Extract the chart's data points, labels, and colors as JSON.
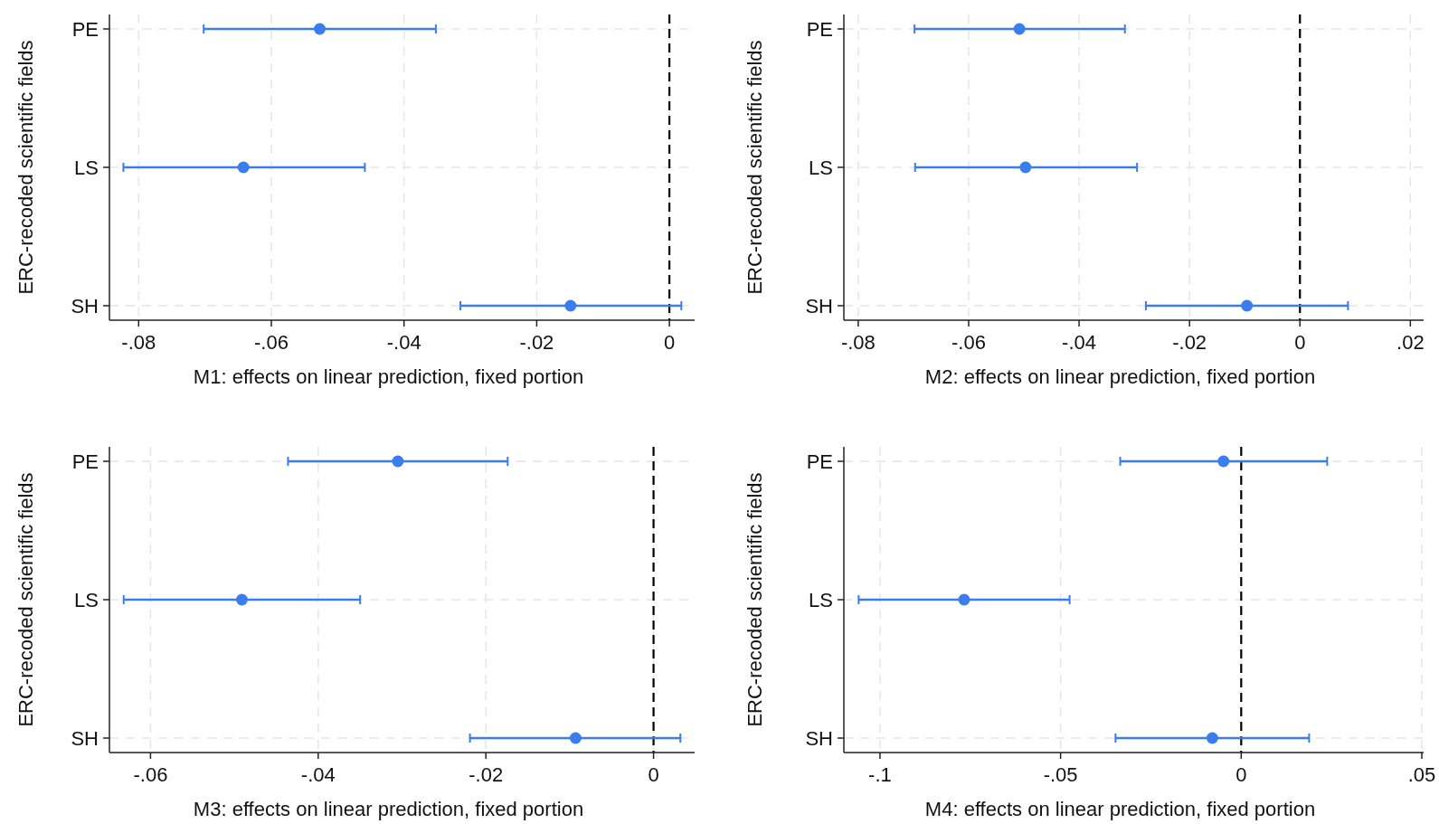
{
  "chart_data": [
    {
      "type": "scatter",
      "orientation": "horizontal",
      "categories": [
        "PE",
        "LS",
        "SH"
      ],
      "values": [
        -0.0527,
        -0.0642,
        -0.0149
      ],
      "errors": [
        [
          -0.0702,
          -0.0352
        ],
        [
          -0.0823,
          -0.0459
        ],
        [
          -0.0315,
          0.0018
        ]
      ],
      "color": "#3b7ded",
      "marker": "circle",
      "xlabel": "M1: effects on linear prediction, fixed portion",
      "ylabel": "ERC-recoded scientific fields",
      "xlim": [
        -0.0844,
        0.0038
      ],
      "xticks": [
        {
          "value": -0.08,
          "label": "-.08"
        },
        {
          "value": -0.06,
          "label": "-.06"
        },
        {
          "value": -0.04,
          "label": "-.04"
        },
        {
          "value": -0.02,
          "label": "-.02"
        },
        {
          "value": 0,
          "label": "0"
        }
      ],
      "grid": true,
      "ref_lines": [
        {
          "axis": "x",
          "value": 0,
          "color": "#000000",
          "line_style": "dashed"
        }
      ]
    },
    {
      "type": "scatter",
      "orientation": "horizontal",
      "categories": [
        "PE",
        "LS",
        "SH"
      ],
      "values": [
        -0.0508,
        -0.0497,
        -0.0096
      ],
      "errors": [
        [
          -0.0698,
          -0.0317
        ],
        [
          -0.0697,
          -0.0295
        ],
        [
          -0.0279,
          0.0087
        ]
      ],
      "color": "#3b7ded",
      "marker": "circle",
      "xlabel": "M2: effects on linear prediction, fixed portion",
      "ylabel": "ERC-recoded scientific fields",
      "xlim": [
        -0.0826,
        0.0224
      ],
      "xticks": [
        {
          "value": -0.08,
          "label": "-.08"
        },
        {
          "value": -0.06,
          "label": "-.06"
        },
        {
          "value": -0.04,
          "label": "-.04"
        },
        {
          "value": -0.02,
          "label": "-.02"
        },
        {
          "value": 0,
          "label": "0"
        },
        {
          "value": 0.02,
          "label": ".02"
        }
      ],
      "grid": true,
      "ref_lines": [
        {
          "axis": "x",
          "value": 0,
          "color": "#000000",
          "line_style": "dashed"
        }
      ]
    },
    {
      "type": "scatter",
      "orientation": "horizontal",
      "categories": [
        "PE",
        "LS",
        "SH"
      ],
      "values": [
        -0.0305,
        -0.0491,
        -0.0093
      ],
      "errors": [
        [
          -0.0436,
          -0.0174
        ],
        [
          -0.0632,
          -0.035
        ],
        [
          -0.0219,
          0.0032
        ]
      ],
      "color": "#3b7ded",
      "marker": "circle",
      "xlabel": "M3: effects on linear prediction, fixed portion",
      "ylabel": "ERC-recoded scientific fields",
      "xlim": [
        -0.0649,
        0.0049
      ],
      "xticks": [
        {
          "value": -0.06,
          "label": "-.06"
        },
        {
          "value": -0.04,
          "label": "-.04"
        },
        {
          "value": -0.02,
          "label": "-.02"
        },
        {
          "value": 0,
          "label": "0"
        }
      ],
      "grid": true,
      "ref_lines": [
        {
          "axis": "x",
          "value": 0,
          "color": "#000000",
          "line_style": "dashed"
        }
      ]
    },
    {
      "type": "scatter",
      "orientation": "horizontal",
      "categories": [
        "PE",
        "LS",
        "SH"
      ],
      "values": [
        -0.0049,
        -0.0767,
        -0.008
      ],
      "errors": [
        [
          -0.0335,
          0.0238
        ],
        [
          -0.1059,
          -0.0475
        ],
        [
          -0.0348,
          0.0188
        ]
      ],
      "color": "#3b7ded",
      "marker": "circle",
      "xlabel": "M4: effects on linear prediction, fixed portion",
      "ylabel": "ERC-recoded scientific fields",
      "xlim": [
        -0.11,
        0.0505
      ],
      "xticks": [
        {
          "value": -0.1,
          "label": "-.1"
        },
        {
          "value": -0.05,
          "label": "-.05"
        },
        {
          "value": 0,
          "label": "0"
        },
        {
          "value": 0.05,
          "label": ".05"
        }
      ],
      "grid": true,
      "ref_lines": [
        {
          "axis": "x",
          "value": 0,
          "color": "#000000",
          "line_style": "dashed"
        }
      ]
    }
  ]
}
